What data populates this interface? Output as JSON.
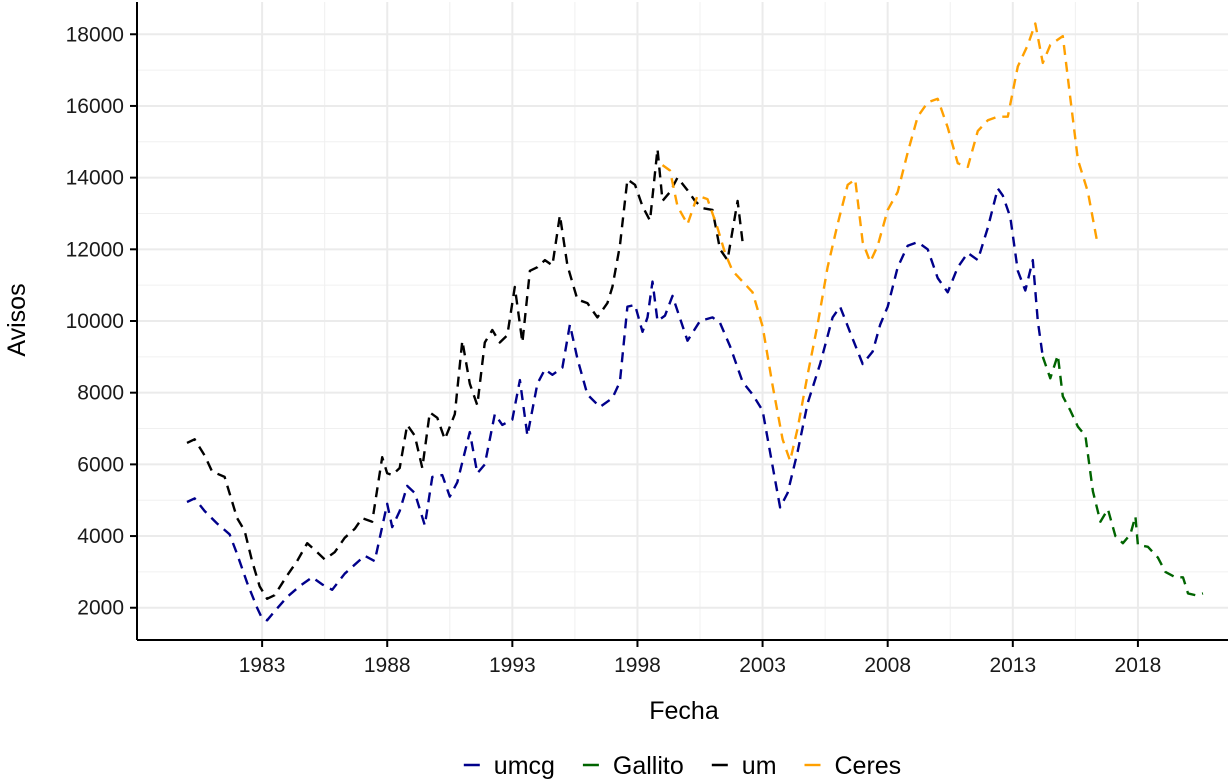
{
  "chart_data": {
    "type": "line",
    "xlabel": "Fecha",
    "ylabel": "Avisos",
    "xlim": [
      1978.0,
      2021.6
    ],
    "ylim": [
      1100,
      18900
    ],
    "x_ticks": [
      1983,
      1988,
      1993,
      1998,
      2003,
      2008,
      2013,
      2018
    ],
    "y_ticks": [
      2000,
      4000,
      6000,
      8000,
      10000,
      12000,
      14000,
      16000,
      18000
    ],
    "grid": true,
    "legend_position": "bottom",
    "line_style": "dashed",
    "series": [
      {
        "name": "umcg",
        "color": "#00008b",
        "points": [
          [
            1980.0,
            4950
          ],
          [
            1980.3,
            5050
          ],
          [
            1980.7,
            4700
          ],
          [
            1981.2,
            4350
          ],
          [
            1981.7,
            4050
          ],
          [
            1982.0,
            3500
          ],
          [
            1982.4,
            2700
          ],
          [
            1982.8,
            2000
          ],
          [
            1983.0,
            1700
          ],
          [
            1983.2,
            1650
          ],
          [
            1983.5,
            1900
          ],
          [
            1984.0,
            2300
          ],
          [
            1984.5,
            2600
          ],
          [
            1985.0,
            2850
          ],
          [
            1985.4,
            2650
          ],
          [
            1985.8,
            2500
          ],
          [
            1986.3,
            2950
          ],
          [
            1986.7,
            3200
          ],
          [
            1987.1,
            3450
          ],
          [
            1987.5,
            3300
          ],
          [
            1988.0,
            4900
          ],
          [
            1988.2,
            4250
          ],
          [
            1988.5,
            4700
          ],
          [
            1988.8,
            5400
          ],
          [
            1989.1,
            5200
          ],
          [
            1989.5,
            4300
          ],
          [
            1989.8,
            5650
          ],
          [
            1990.2,
            5700
          ],
          [
            1990.5,
            5100
          ],
          [
            1990.8,
            5500
          ],
          [
            1991.3,
            6900
          ],
          [
            1991.6,
            5750
          ],
          [
            1991.9,
            6000
          ],
          [
            1992.3,
            7400
          ],
          [
            1992.6,
            7100
          ],
          [
            1993.0,
            7250
          ],
          [
            1993.3,
            8350
          ],
          [
            1993.6,
            6800
          ],
          [
            1994.0,
            8250
          ],
          [
            1994.3,
            8650
          ],
          [
            1994.6,
            8500
          ],
          [
            1995.0,
            8700
          ],
          [
            1995.3,
            9900
          ],
          [
            1995.6,
            8950
          ],
          [
            1996.0,
            7950
          ],
          [
            1996.5,
            7600
          ],
          [
            1997.0,
            7850
          ],
          [
            1997.3,
            8300
          ],
          [
            1997.6,
            10400
          ],
          [
            1997.9,
            10450
          ],
          [
            1998.2,
            9700
          ],
          [
            1998.4,
            10100
          ],
          [
            1998.6,
            11100
          ],
          [
            1998.8,
            10000
          ],
          [
            1999.1,
            10150
          ],
          [
            1999.4,
            10700
          ],
          [
            2000.0,
            9450
          ],
          [
            2000.5,
            10000
          ],
          [
            2001.0,
            10100
          ],
          [
            2001.3,
            9950
          ],
          [
            2001.7,
            9300
          ],
          [
            2002.2,
            8300
          ],
          [
            2002.6,
            7950
          ],
          [
            2003.0,
            7500
          ],
          [
            2003.4,
            5950
          ],
          [
            2003.7,
            4800
          ],
          [
            2004.0,
            5200
          ],
          [
            2004.4,
            6350
          ],
          [
            2004.8,
            7700
          ],
          [
            2005.3,
            8800
          ],
          [
            2005.8,
            10100
          ],
          [
            2006.1,
            10400
          ],
          [
            2006.6,
            9500
          ],
          [
            2007.0,
            8800
          ],
          [
            2007.4,
            9150
          ],
          [
            2007.7,
            9900
          ],
          [
            2008.0,
            10400
          ],
          [
            2008.4,
            11500
          ],
          [
            2008.8,
            12100
          ],
          [
            2009.2,
            12200
          ],
          [
            2009.6,
            12000
          ],
          [
            2010.0,
            11200
          ],
          [
            2010.4,
            10800
          ],
          [
            2010.8,
            11500
          ],
          [
            2011.2,
            11900
          ],
          [
            2011.6,
            11700
          ],
          [
            2012.0,
            12600
          ],
          [
            2012.4,
            13700
          ],
          [
            2012.6,
            13500
          ],
          [
            2012.9,
            12900
          ],
          [
            2013.2,
            11400
          ],
          [
            2013.5,
            10850
          ],
          [
            2013.8,
            11700
          ],
          [
            2014.0,
            10000
          ],
          [
            2014.2,
            9000
          ]
        ]
      },
      {
        "name": "Gallito",
        "color": "#006400",
        "points": [
          [
            2014.2,
            9000
          ],
          [
            2014.5,
            8400
          ],
          [
            2014.8,
            9050
          ],
          [
            2015.0,
            7900
          ],
          [
            2015.3,
            7500
          ],
          [
            2015.6,
            7050
          ],
          [
            2015.9,
            6800
          ],
          [
            2016.2,
            5250
          ],
          [
            2016.5,
            4400
          ],
          [
            2016.8,
            4750
          ],
          [
            2017.1,
            4000
          ],
          [
            2017.4,
            3800
          ],
          [
            2017.7,
            4050
          ],
          [
            2017.9,
            4550
          ],
          [
            2018.0,
            3750
          ],
          [
            2018.4,
            3700
          ],
          [
            2018.8,
            3400
          ],
          [
            2019.1,
            3000
          ],
          [
            2019.5,
            2850
          ],
          [
            2019.8,
            2850
          ],
          [
            2020.0,
            2400
          ],
          [
            2020.3,
            2350
          ],
          [
            2020.6,
            2400
          ]
        ]
      },
      {
        "name": "um",
        "color": "#000000",
        "points": [
          [
            1980.0,
            6600
          ],
          [
            1980.3,
            6700
          ],
          [
            1980.7,
            6250
          ],
          [
            1981.0,
            5800
          ],
          [
            1981.5,
            5650
          ],
          [
            1982.0,
            4500
          ],
          [
            1982.3,
            4150
          ],
          [
            1982.6,
            3300
          ],
          [
            1982.9,
            2600
          ],
          [
            1983.2,
            2250
          ],
          [
            1983.5,
            2350
          ],
          [
            1984.0,
            2900
          ],
          [
            1984.4,
            3300
          ],
          [
            1984.8,
            3800
          ],
          [
            1985.2,
            3550
          ],
          [
            1985.5,
            3350
          ],
          [
            1985.9,
            3550
          ],
          [
            1986.3,
            3950
          ],
          [
            1986.7,
            4200
          ],
          [
            1987.0,
            4500
          ],
          [
            1987.4,
            4400
          ],
          [
            1987.8,
            6200
          ],
          [
            1988.0,
            5750
          ],
          [
            1988.2,
            5700
          ],
          [
            1988.5,
            5900
          ],
          [
            1988.8,
            7100
          ],
          [
            1989.1,
            6800
          ],
          [
            1989.4,
            5900
          ],
          [
            1989.7,
            7450
          ],
          [
            1990.0,
            7300
          ],
          [
            1990.3,
            6700
          ],
          [
            1990.7,
            7400
          ],
          [
            1991.0,
            9450
          ],
          [
            1991.3,
            8250
          ],
          [
            1991.6,
            7650
          ],
          [
            1991.9,
            9400
          ],
          [
            1992.2,
            9750
          ],
          [
            1992.5,
            9400
          ],
          [
            1992.8,
            9600
          ],
          [
            1993.1,
            10950
          ],
          [
            1993.4,
            9400
          ],
          [
            1993.7,
            11400
          ],
          [
            1994.0,
            11500
          ],
          [
            1994.3,
            11700
          ],
          [
            1994.6,
            11550
          ],
          [
            1994.9,
            12950
          ],
          [
            1995.2,
            11550
          ],
          [
            1995.6,
            10600
          ],
          [
            1996.0,
            10500
          ],
          [
            1996.4,
            10100
          ],
          [
            1996.8,
            10500
          ],
          [
            1997.0,
            10950
          ],
          [
            1997.3,
            12100
          ],
          [
            1997.6,
            13950
          ],
          [
            1997.9,
            13800
          ],
          [
            1998.2,
            13200
          ],
          [
            1998.5,
            12800
          ],
          [
            1998.8,
            14800
          ],
          [
            1999.0,
            13350
          ],
          [
            1999.3,
            13600
          ],
          [
            1999.6,
            14000
          ],
          [
            2000.0,
            13650
          ],
          [
            2000.3,
            13350
          ],
          [
            2000.6,
            13150
          ],
          [
            2001.0,
            13100
          ],
          [
            2001.3,
            12000
          ],
          [
            2001.6,
            11700
          ],
          [
            2002.0,
            13350
          ],
          [
            2002.2,
            12200
          ]
        ]
      },
      {
        "name": "Ceres",
        "color": "#ffa000",
        "points": [
          [
            1999.0,
            14350
          ],
          [
            1999.3,
            14200
          ],
          [
            1999.6,
            13200
          ],
          [
            2000.0,
            12700
          ],
          [
            2000.4,
            13500
          ],
          [
            2000.8,
            13400
          ],
          [
            2001.2,
            12600
          ],
          [
            2001.5,
            11900
          ],
          [
            2001.8,
            11400
          ],
          [
            2002.2,
            11100
          ],
          [
            2002.6,
            10800
          ],
          [
            2003.0,
            9850
          ],
          [
            2003.4,
            8200
          ],
          [
            2003.8,
            6700
          ],
          [
            2004.1,
            6100
          ],
          [
            2004.4,
            7000
          ],
          [
            2004.8,
            8500
          ],
          [
            2005.2,
            9900
          ],
          [
            2005.6,
            11500
          ],
          [
            2006.0,
            12700
          ],
          [
            2006.4,
            13800
          ],
          [
            2006.7,
            13950
          ],
          [
            2007.0,
            12200
          ],
          [
            2007.3,
            11650
          ],
          [
            2007.6,
            12100
          ],
          [
            2008.0,
            13100
          ],
          [
            2008.4,
            13600
          ],
          [
            2008.8,
            14700
          ],
          [
            2009.2,
            15700
          ],
          [
            2009.6,
            16100
          ],
          [
            2010.0,
            16200
          ],
          [
            2010.4,
            15400
          ],
          [
            2010.8,
            14400
          ],
          [
            2011.2,
            14300
          ],
          [
            2011.6,
            15300
          ],
          [
            2012.0,
            15600
          ],
          [
            2012.4,
            15700
          ],
          [
            2012.8,
            15700
          ],
          [
            2013.2,
            17100
          ],
          [
            2013.6,
            17700
          ],
          [
            2013.9,
            18300
          ],
          [
            2014.2,
            17200
          ],
          [
            2014.5,
            17700
          ],
          [
            2014.8,
            17850
          ],
          [
            2015.0,
            17950
          ],
          [
            2015.3,
            16200
          ],
          [
            2015.6,
            14500
          ],
          [
            2016.0,
            13600
          ],
          [
            2016.4,
            12100
          ]
        ]
      }
    ]
  }
}
